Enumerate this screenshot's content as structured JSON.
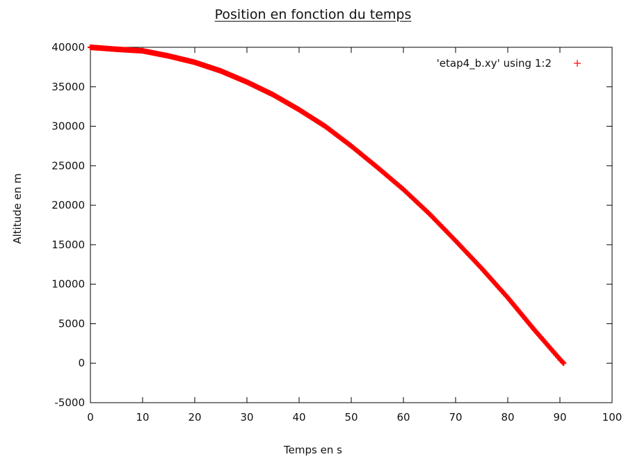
{
  "chart_data": {
    "type": "scatter",
    "title": "Position en fonction du temps",
    "xlabel": "Temps en s",
    "ylabel": "Altitude en m",
    "xlim": [
      0,
      100
    ],
    "ylim": [
      -5000,
      40000
    ],
    "xticks": [
      0,
      10,
      20,
      30,
      40,
      50,
      60,
      70,
      80,
      90,
      100
    ],
    "yticks": [
      -5000,
      0,
      5000,
      10000,
      15000,
      20000,
      25000,
      30000,
      35000,
      40000
    ],
    "grid": false,
    "legend_position": "top-right",
    "color": "#ff0000",
    "series": [
      {
        "name": "'etap4_b.xy' using 1:2",
        "marker": "+",
        "x": [
          0,
          5,
          10,
          15,
          20,
          25,
          30,
          35,
          40,
          45,
          50,
          55,
          60,
          65,
          70,
          75,
          80,
          85,
          90,
          90.7
        ],
        "y": [
          40000,
          39750,
          39550,
          38900,
          38100,
          37000,
          35600,
          34000,
          32100,
          30000,
          27500,
          24800,
          22000,
          18900,
          15500,
          12000,
          8300,
          4300,
          500,
          0
        ]
      }
    ]
  }
}
